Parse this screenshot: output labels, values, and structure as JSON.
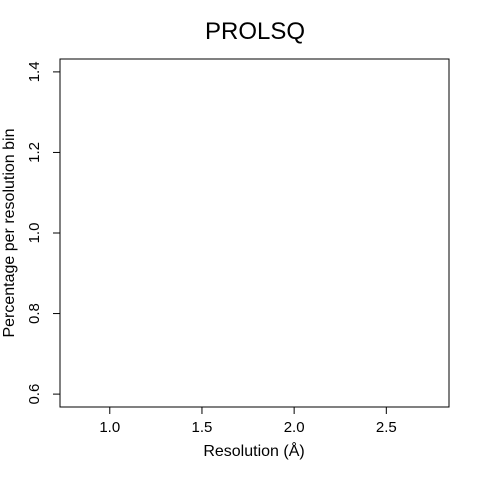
{
  "chart_data": {
    "type": "scatter",
    "title": "PROLSQ",
    "xlabel": "Resolution (Å)",
    "ylabel": "Percentage per resolution bin",
    "xlim": [
      0.73,
      2.84
    ],
    "ylim": [
      0.568,
      1.432
    ],
    "x_ticks": [
      "1.0",
      "1.5",
      "2.0",
      "2.5"
    ],
    "y_ticks": [
      "0.6",
      "0.8",
      "1.0",
      "1.2",
      "1.4"
    ],
    "series": [],
    "grid": false,
    "legend": "none",
    "colors": {
      "axis": "#000000",
      "background": "#ffffff"
    }
  }
}
